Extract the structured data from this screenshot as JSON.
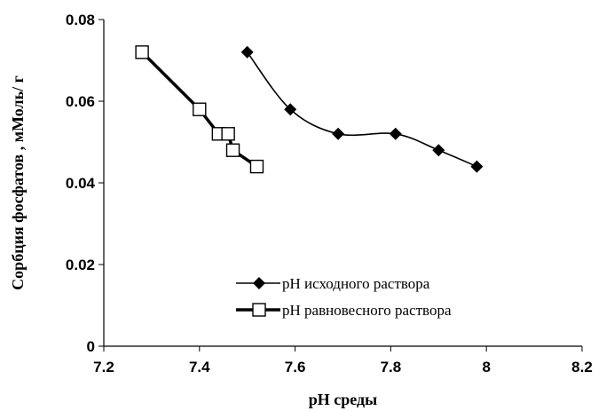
{
  "chart_data": {
    "type": "line",
    "xlabel": "pH среды",
    "ylabel": "Сорбция фосфатов , мМоль/ г",
    "xlim": [
      7.2,
      8.2
    ],
    "ylim": [
      0,
      0.08
    ],
    "xticks": [
      "7.2",
      "7.4",
      "7.6",
      "7.8",
      "8",
      "8.2"
    ],
    "yticks": [
      "0",
      "0.02",
      "0.04",
      "0.06",
      "0.08"
    ],
    "grid": false,
    "legend_position": "lower-right",
    "series": [
      {
        "name": "pH исходного раствора",
        "marker": "diamond",
        "color": "#000000",
        "smooth": true,
        "x": [
          7.5,
          7.59,
          7.69,
          7.81,
          7.9,
          7.98
        ],
        "y": [
          0.072,
          0.058,
          0.052,
          0.052,
          0.048,
          0.044
        ]
      },
      {
        "name": "pH равновесного раствора",
        "marker": "square",
        "color": "#000000",
        "smooth": false,
        "x": [
          7.28,
          7.4,
          7.44,
          7.46,
          7.47,
          7.52
        ],
        "y": [
          0.072,
          0.058,
          0.052,
          0.052,
          0.048,
          0.044
        ]
      }
    ]
  }
}
